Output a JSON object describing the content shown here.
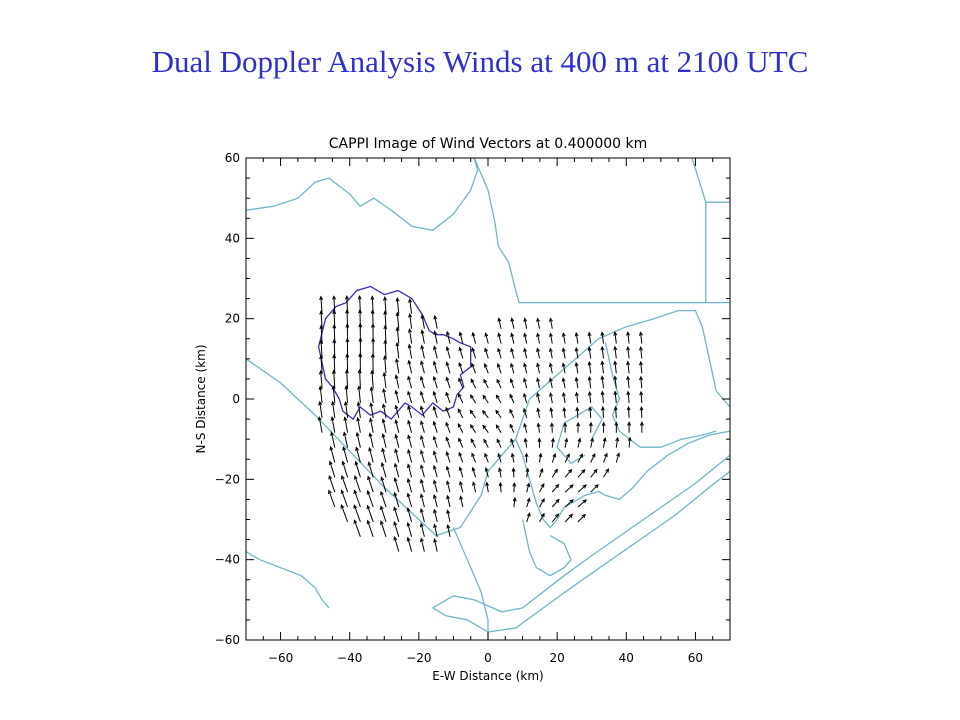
{
  "slide": {
    "title": "Dual Doppler Analysis  Winds at 400 m at 2100 UTC"
  },
  "colors": {
    "title": "#2f2fd0",
    "coastline": "#6fb6c8",
    "echo_outline": "#3a2fb0",
    "vectors": "#000000",
    "background": "#ffffff"
  },
  "chart_data": {
    "type": "quiver",
    "title": "CAPPI Image of Wind Vectors at   0.400000 km",
    "xlabel": "E-W Distance (km)",
    "ylabel": "N-S Distance (km)",
    "xlim": [
      -70,
      70
    ],
    "ylim": [
      -60,
      60
    ],
    "xticks": [
      -60,
      -40,
      -20,
      0,
      20,
      40,
      60
    ],
    "yticks": [
      60,
      40,
      20,
      0,
      -20,
      -40,
      -60
    ],
    "grid": false,
    "legend": "none",
    "vector_grid_spacing_km": 3.7,
    "vector_region": [
      [
        -48,
        22
      ],
      [
        -40,
        24
      ],
      [
        -30,
        24
      ],
      [
        -22,
        22
      ],
      [
        -15,
        18
      ],
      [
        -5,
        15
      ],
      [
        5,
        18
      ],
      [
        15,
        18
      ],
      [
        25,
        17
      ],
      [
        35,
        17
      ],
      [
        47,
        15
      ],
      [
        47,
        -10
      ],
      [
        40,
        -14
      ],
      [
        33,
        -22
      ],
      [
        26,
        -32
      ],
      [
        14,
        -34
      ],
      [
        6,
        -28
      ],
      [
        -2,
        -22
      ],
      [
        -10,
        -34
      ],
      [
        -16,
        -40
      ],
      [
        -26,
        -38
      ],
      [
        -38,
        -36
      ],
      [
        -46,
        -28
      ],
      [
        -48,
        -10
      ]
    ],
    "wind_field": {
      "description": "Wind vectors mostly pointing north-northwest (southerly/south-easterly flow); stronger in the western sector",
      "components": [
        {
          "x": -40,
          "y": -30,
          "u": -0.9,
          "v": 2.4
        },
        {
          "x": -36,
          "y": 10,
          "u": 0.0,
          "v": 2.9
        },
        {
          "x": -20,
          "y": 0,
          "u": -0.5,
          "v": 1.6
        },
        {
          "x": 0,
          "y": -5,
          "u": -0.8,
          "v": 1.0
        },
        {
          "x": 20,
          "y": 5,
          "u": -0.3,
          "v": 1.4
        },
        {
          "x": 35,
          "y": 5,
          "u": -0.2,
          "v": 1.7
        },
        {
          "x": 25,
          "y": -25,
          "u": 1.2,
          "v": 1.0
        }
      ]
    },
    "echo_outline": [
      [
        -49,
        13
      ],
      [
        -47,
        20
      ],
      [
        -44,
        23
      ],
      [
        -41,
        24
      ],
      [
        -38,
        27
      ],
      [
        -34,
        28
      ],
      [
        -30,
        26
      ],
      [
        -26,
        27
      ],
      [
        -22,
        25
      ],
      [
        -19,
        21
      ],
      [
        -17,
        17
      ],
      [
        -15,
        16
      ],
      [
        -13,
        16
      ],
      [
        -10,
        15
      ],
      [
        -8,
        14
      ],
      [
        -5,
        13
      ],
      [
        -5,
        8
      ],
      [
        -8,
        6
      ],
      [
        -7,
        3
      ],
      [
        -9,
        1
      ],
      [
        -10,
        -2
      ],
      [
        -13,
        -3
      ],
      [
        -16,
        -1
      ],
      [
        -19,
        -4
      ],
      [
        -22,
        -2
      ],
      [
        -24,
        -1
      ],
      [
        -28,
        -5
      ],
      [
        -31,
        -3
      ],
      [
        -34,
        -4
      ],
      [
        -37,
        -2
      ],
      [
        -39,
        -5
      ],
      [
        -42,
        -3
      ],
      [
        -43,
        0
      ],
      [
        -45,
        3
      ],
      [
        -47,
        5
      ],
      [
        -48,
        9
      ]
    ],
    "coastlines": [
      [
        [
          -70,
          47
        ],
        [
          -62,
          48
        ],
        [
          -55,
          50
        ],
        [
          -50,
          54
        ],
        [
          -46,
          55
        ],
        [
          -40,
          51
        ],
        [
          -37,
          48
        ],
        [
          -33,
          50
        ],
        [
          -28,
          47
        ],
        [
          -22,
          43
        ],
        [
          -16,
          42
        ],
        [
          -10,
          46
        ],
        [
          -5,
          52
        ],
        [
          -3,
          57
        ],
        [
          -4,
          60
        ]
      ],
      [
        [
          -4,
          60
        ],
        [
          0,
          52
        ],
        [
          2,
          44
        ],
        [
          3,
          38
        ],
        [
          6,
          34
        ],
        [
          8,
          27
        ],
        [
          9,
          24
        ],
        [
          12,
          24
        ]
      ],
      [
        [
          12,
          24
        ],
        [
          62,
          24
        ],
        [
          70,
          24
        ]
      ],
      [
        [
          59,
          60
        ],
        [
          63,
          49
        ],
        [
          63,
          24
        ]
      ],
      [
        [
          63,
          49
        ],
        [
          70,
          49
        ]
      ],
      [
        [
          -70,
          10
        ],
        [
          -60,
          4
        ],
        [
          -50,
          -4
        ],
        [
          -40,
          -13
        ],
        [
          -30,
          -22
        ],
        [
          -20,
          -30
        ],
        [
          -15,
          -34
        ],
        [
          -8,
          -32
        ],
        [
          -2,
          -24
        ],
        [
          0,
          -18
        ],
        [
          4,
          -14
        ],
        [
          8,
          -10
        ],
        [
          10,
          -5
        ],
        [
          12,
          0
        ],
        [
          16,
          3
        ],
        [
          20,
          6
        ],
        [
          24,
          9
        ],
        [
          28,
          12
        ],
        [
          32,
          15
        ],
        [
          40,
          18
        ],
        [
          48,
          20
        ],
        [
          55,
          22
        ],
        [
          60,
          22
        ],
        [
          62,
          18
        ],
        [
          64,
          10
        ],
        [
          66,
          2
        ],
        [
          70,
          -2
        ]
      ],
      [
        [
          -10,
          -32
        ],
        [
          -6,
          -40
        ],
        [
          -2,
          -48
        ],
        [
          0,
          -55
        ],
        [
          0,
          -60
        ]
      ],
      [
        [
          -70,
          -38
        ],
        [
          -66,
          -40
        ],
        [
          -60,
          -42
        ],
        [
          -54,
          -44
        ],
        [
          -50,
          -47
        ],
        [
          -48,
          -50
        ],
        [
          -46,
          -52
        ]
      ],
      [
        [
          8,
          -10
        ],
        [
          10,
          -14
        ],
        [
          12,
          -20
        ],
        [
          14,
          -26
        ],
        [
          16,
          -30
        ],
        [
          18,
          -32
        ],
        [
          20,
          -30
        ],
        [
          22,
          -27
        ],
        [
          24,
          -26
        ],
        [
          28,
          -24
        ],
        [
          32,
          -23
        ],
        [
          34,
          -24
        ],
        [
          38,
          -25
        ],
        [
          42,
          -22
        ],
        [
          46,
          -18
        ],
        [
          52,
          -14
        ],
        [
          58,
          -11
        ],
        [
          64,
          -9
        ],
        [
          70,
          -8
        ]
      ],
      [
        [
          -16,
          -52
        ],
        [
          -10,
          -49
        ],
        [
          -4,
          -50
        ],
        [
          4,
          -53
        ],
        [
          10,
          -52
        ],
        [
          16,
          -48
        ],
        [
          22,
          -44
        ],
        [
          30,
          -39
        ],
        [
          40,
          -33
        ],
        [
          50,
          -27
        ],
        [
          60,
          -21
        ],
        [
          70,
          -14
        ]
      ],
      [
        [
          -16,
          -52
        ],
        [
          -12,
          -54
        ],
        [
          -6,
          -55
        ],
        [
          0,
          -58
        ],
        [
          8,
          -57
        ],
        [
          16,
          -52
        ],
        [
          24,
          -47
        ],
        [
          34,
          -41
        ],
        [
          44,
          -35
        ],
        [
          54,
          -29
        ],
        [
          64,
          -22
        ],
        [
          70,
          -18
        ]
      ],
      [
        [
          10,
          -30
        ],
        [
          12,
          -38
        ],
        [
          14,
          -42
        ],
        [
          18,
          -44
        ],
        [
          22,
          -42
        ],
        [
          24,
          -40
        ],
        [
          22,
          -36
        ],
        [
          18,
          -34
        ]
      ],
      [
        [
          30,
          -10
        ],
        [
          33,
          -5
        ],
        [
          30,
          -2
        ],
        [
          26,
          -4
        ],
        [
          22,
          -6
        ],
        [
          20,
          -12
        ],
        [
          24,
          -16
        ],
        [
          28,
          -14
        ]
      ],
      [
        [
          34,
          14
        ],
        [
          36,
          6
        ],
        [
          38,
          0
        ],
        [
          36,
          -4
        ],
        [
          38,
          -8
        ],
        [
          44,
          -12
        ],
        [
          50,
          -12
        ],
        [
          56,
          -10
        ],
        [
          62,
          -9
        ],
        [
          66,
          -8
        ]
      ]
    ]
  }
}
